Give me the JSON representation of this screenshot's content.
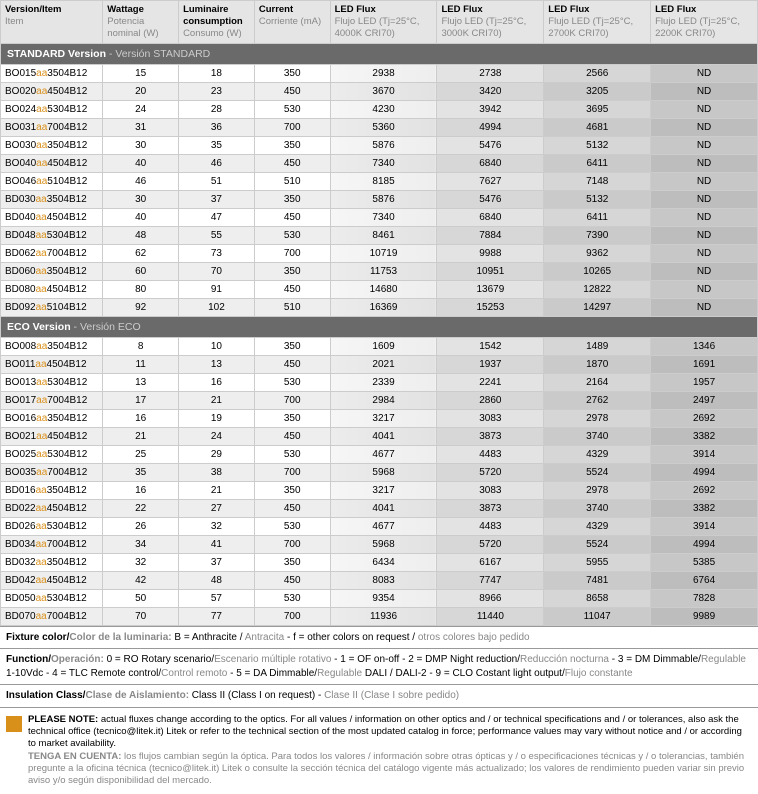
{
  "cols": [
    {
      "h1": "Version/Item",
      "h2": "Item",
      "w": "13.5%"
    },
    {
      "h1": "Wattage",
      "h2": "Potencia nominal\n(W)",
      "w": "10%"
    },
    {
      "h1": "Luminaire consumption",
      "h2": "Consumo\n(W)",
      "w": "10%"
    },
    {
      "h1": "Current",
      "h2": "Corriente\n(mA)",
      "w": "10%"
    },
    {
      "h1": "LED Flux",
      "h2": "Flujo LED\n(Tj=25°C,\n4000K CRI70)",
      "w": "14.1%"
    },
    {
      "h1": "LED Flux",
      "h2": "Flujo LED\n(Tj=25°C,\n3000K CRI70)",
      "w": "14.1%"
    },
    {
      "h1": "LED Flux",
      "h2": "Flujo LED\n(Tj=25°C,\n2700K CRI70)",
      "w": "14.1%"
    },
    {
      "h1": "LED Flux",
      "h2": "Flujo LED\n(Tj=25°C,\n2200K CRI70)",
      "w": "14.1%"
    }
  ],
  "sections": [
    {
      "title": "STANDARD Version",
      "sub": " - Versión STANDARD",
      "rows": [
        [
          "BO015",
          "3504B12",
          "15",
          "18",
          "350",
          "2938",
          "2738",
          "2566",
          "ND"
        ],
        [
          "BO020",
          "4504B12",
          "20",
          "23",
          "450",
          "3670",
          "3420",
          "3205",
          "ND"
        ],
        [
          "BO024",
          "5304B12",
          "24",
          "28",
          "530",
          "4230",
          "3942",
          "3695",
          "ND"
        ],
        [
          "BO031",
          "7004B12",
          "31",
          "36",
          "700",
          "5360",
          "4994",
          "4681",
          "ND"
        ],
        [
          "BO030",
          "3504B12",
          "30",
          "35",
          "350",
          "5876",
          "5476",
          "5132",
          "ND"
        ],
        [
          "BO040",
          "4504B12",
          "40",
          "46",
          "450",
          "7340",
          "6840",
          "6411",
          "ND"
        ],
        [
          "BO046",
          "5104B12",
          "46",
          "51",
          "510",
          "8185",
          "7627",
          "7148",
          "ND"
        ],
        [
          "BD030",
          "3504B12",
          "30",
          "37",
          "350",
          "5876",
          "5476",
          "5132",
          "ND"
        ],
        [
          "BD040",
          "4504B12",
          "40",
          "47",
          "450",
          "7340",
          "6840",
          "6411",
          "ND"
        ],
        [
          "BD048",
          "5304B12",
          "48",
          "55",
          "530",
          "8461",
          "7884",
          "7390",
          "ND"
        ],
        [
          "BD062",
          "7004B12",
          "62",
          "73",
          "700",
          "10719",
          "9988",
          "9362",
          "ND"
        ],
        [
          "BD060",
          "3504B12",
          "60",
          "70",
          "350",
          "11753",
          "10951",
          "10265",
          "ND"
        ],
        [
          "BD080",
          "4504B12",
          "80",
          "91",
          "450",
          "14680",
          "13679",
          "12822",
          "ND"
        ],
        [
          "BD092",
          "5104B12",
          "92",
          "102",
          "510",
          "16369",
          "15253",
          "14297",
          "ND"
        ]
      ]
    },
    {
      "title": "ECO Version",
      "sub": " - Versión ECO",
      "rows": [
        [
          "BO008",
          "3504B12",
          "8",
          "10",
          "350",
          "1609",
          "1542",
          "1489",
          "1346"
        ],
        [
          "BO011",
          "4504B12",
          "11",
          "13",
          "450",
          "2021",
          "1937",
          "1870",
          "1691"
        ],
        [
          "BO013",
          "5304B12",
          "13",
          "16",
          "530",
          "2339",
          "2241",
          "2164",
          "1957"
        ],
        [
          "BO017",
          "7004B12",
          "17",
          "21",
          "700",
          "2984",
          "2860",
          "2762",
          "2497"
        ],
        [
          "BO016",
          "3504B12",
          "16",
          "19",
          "350",
          "3217",
          "3083",
          "2978",
          "2692"
        ],
        [
          "BO021",
          "4504B12",
          "21",
          "24",
          "450",
          "4041",
          "3873",
          "3740",
          "3382"
        ],
        [
          "BO025",
          "5304B12",
          "25",
          "29",
          "530",
          "4677",
          "4483",
          "4329",
          "3914"
        ],
        [
          "BO035",
          "7004B12",
          "35",
          "38",
          "700",
          "5968",
          "5720",
          "5524",
          "4994"
        ],
        [
          "BD016",
          "3504B12",
          "16",
          "21",
          "350",
          "3217",
          "3083",
          "2978",
          "2692"
        ],
        [
          "BD022",
          "4504B12",
          "22",
          "27",
          "450",
          "4041",
          "3873",
          "3740",
          "3382"
        ],
        [
          "BD026",
          "5304B12",
          "26",
          "32",
          "530",
          "4677",
          "4483",
          "4329",
          "3914"
        ],
        [
          "BD034",
          "7004B12",
          "34",
          "41",
          "700",
          "5968",
          "5720",
          "5524",
          "4994"
        ],
        [
          "BD032",
          "3504B12",
          "32",
          "37",
          "350",
          "6434",
          "6167",
          "5955",
          "5385"
        ],
        [
          "BD042",
          "4504B12",
          "42",
          "48",
          "450",
          "8083",
          "7747",
          "7481",
          "6764"
        ],
        [
          "BD050",
          "5304B12",
          "50",
          "57",
          "530",
          "9354",
          "8966",
          "8658",
          "7828"
        ],
        [
          "BD070",
          "7004B12",
          "70",
          "77",
          "700",
          "11936",
          "11440",
          "11047",
          "9989"
        ]
      ]
    }
  ],
  "note1": {
    "label": "Fixture color/",
    "labelI": "Color de la luminaria: ",
    "t1": "B = Anthracite / ",
    "t1g": "Antracita",
    "t2": " - f = other colors on request / ",
    "t2g": "otros colores bajo pedido"
  },
  "note2": {
    "label": "Function/",
    "labelI": "Operación: ",
    "body": "0 = RO Rotary scenario/",
    "b0g": "Escenario múltiple rotativo",
    "b1": " - 1 = OF on-off - 2 = DMP Night reduction/",
    "b1g": "Reducción nocturna",
    "b2": " - 3 = DM Dimmable/",
    "b2g": "Regulable",
    "b3": " 1-10Vdc - 4 = TLC Remote control/",
    "b3g": "Control remoto",
    "b4": " - 5 = DA Dimmable/",
    "b4g": "Regulable",
    "b5": " DALI / DALI-2 - 9 = CLO Costant light output/",
    "b5g": "Flujo constante"
  },
  "note3": {
    "label": "Insulation Class/",
    "labelI": "Clase de Aislamiento: ",
    "t": "Class II (Class I on request) - ",
    "tg": "Clase II (Clase I sobre pedido)"
  },
  "pn": {
    "l1a": "PLEASE NOTE:",
    "l1b": " actual fluxes change according to the optics. For all values / information on other optics and / or technical specifications and / or tolerances, also ask the technical office (tecnico@litek.it) Litek or refer to the technical section of the most updated catalog in force; performance values may vary without notice and / or according to market availability.",
    "l2a": "TENGA EN CUENTA:",
    "l2b": " los flujos cambian según la óptica. Para todos los valores / información sobre otras ópticas y / o especificaciones técnicas y / o tolerancias, también pregunte a la oficina técnica (tecnico@litek.it) Litek o consulte la sección técnica del catálogo vigente más actualizado; los valores de rendimiento pueden variar sin previo aviso y/o según disponibilidad del mercado."
  }
}
